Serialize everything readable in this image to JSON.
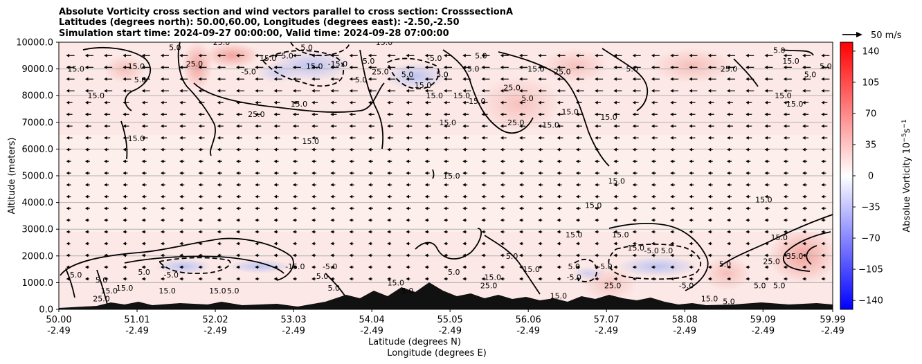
{
  "chart_data": {
    "type": "heatmap",
    "title_lines": [
      "Absolute Vorticity cross section and wind vectors parallel to cross section: CrosssectionA",
      "Latitudes (degrees north): 50.00,60.00, Longitudes (degrees east): -2.50,-2.50",
      "Simulation start time: 2024-09-27 00:00:00, Valid time: 2024-09-28 07:00:00"
    ],
    "xlabel": "Latitude (degrees N)",
    "xlabel2": "Longitude (degrees E)",
    "ylabel": "Altitude (meters)",
    "xlim": [
      50.0,
      59.99
    ],
    "ylim": [
      0,
      10000
    ],
    "x_ticks": [
      {
        "lat": "50.00",
        "lon": "-2.49",
        "value": 50.0
      },
      {
        "lat": "51.01",
        "lon": "-2.49",
        "value": 51.01
      },
      {
        "lat": "52.02",
        "lon": "-2.49",
        "value": 52.02
      },
      {
        "lat": "53.03",
        "lon": "-2.49",
        "value": 53.03
      },
      {
        "lat": "54.04",
        "lon": "-2.49",
        "value": 54.04
      },
      {
        "lat": "55.05",
        "lon": "-2.49",
        "value": 55.05
      },
      {
        "lat": "56.06",
        "lon": "-2.49",
        "value": 56.06
      },
      {
        "lat": "57.07",
        "lon": "-2.49",
        "value": 57.07
      },
      {
        "lat": "58.08",
        "lon": "-2.49",
        "value": 58.08
      },
      {
        "lat": "59.09",
        "lon": "-2.49",
        "value": 59.09
      },
      {
        "lat": "59.99",
        "lon": "-2.49",
        "value": 59.99
      }
    ],
    "y_ticks": [
      {
        "label": "0.0",
        "value": 0
      },
      {
        "label": "1000.0",
        "value": 1000
      },
      {
        "label": "2000.0",
        "value": 2000
      },
      {
        "label": "3000.0",
        "value": 3000
      },
      {
        "label": "4000.0",
        "value": 4000
      },
      {
        "label": "5000.0",
        "value": 5000
      },
      {
        "label": "6000.0",
        "value": 6000
      },
      {
        "label": "7000.0",
        "value": 7000
      },
      {
        "label": "8000.0",
        "value": 8000
      },
      {
        "label": "9000.0",
        "value": 9000
      },
      {
        "label": "10000.0",
        "value": 10000
      }
    ],
    "grid": "horizontal",
    "colorbar": {
      "label": "Absolue Vorticity 10",
      "label_exp": "−5",
      "label_unit": "s",
      "label_unit_exp": "−1",
      "range": [
        -150,
        150
      ],
      "ticks": [
        {
          "label": "140",
          "value": 140
        },
        {
          "label": "105",
          "value": 105
        },
        {
          "label": "70",
          "value": 70
        },
        {
          "label": "35",
          "value": 35
        },
        {
          "label": "0",
          "value": 0
        },
        {
          "label": "−35",
          "value": -35
        },
        {
          "label": "−70",
          "value": -70
        },
        {
          "label": "−105",
          "value": -105
        },
        {
          "label": "−140",
          "value": -140
        }
      ],
      "colors": {
        "negative": "#0000ff",
        "zero": "#ffffff",
        "positive": "#ff0000"
      }
    },
    "quiver_key": {
      "label": "50 m/s"
    },
    "contour_labels": [
      {
        "text": "15.0",
        "lat": 50.22,
        "alt": 9000
      },
      {
        "text": "15.0",
        "lat": 50.48,
        "alt": 8000
      },
      {
        "text": "15.0",
        "lat": 51.0,
        "alt": 9100
      },
      {
        "text": "5.0",
        "lat": 51.05,
        "alt": 8600
      },
      {
        "text": "15.0",
        "lat": 51.0,
        "alt": 6400
      },
      {
        "text": "5.0",
        "lat": 51.5,
        "alt": 9800
      },
      {
        "text": "25.0",
        "lat": 51.75,
        "alt": 9200
      },
      {
        "text": "25.0",
        "lat": 52.1,
        "alt": 10000
      },
      {
        "text": "15.0",
        "lat": 52.7,
        "alt": 9400
      },
      {
        "text": "5.0",
        "lat": 52.95,
        "alt": 9500
      },
      {
        "text": "-5.0",
        "lat": 52.45,
        "alt": 8900
      },
      {
        "text": "25.0",
        "lat": 52.55,
        "alt": 7300
      },
      {
        "text": "15.0",
        "lat": 53.1,
        "alt": 7700
      },
      {
        "text": "5.0",
        "lat": 53.2,
        "alt": 9800
      },
      {
        "text": "15.0",
        "lat": 53.3,
        "alt": 9100
      },
      {
        "text": "-15.0",
        "lat": 53.6,
        "alt": 9200
      },
      {
        "text": "15.0",
        "lat": 53.25,
        "alt": 6300
      },
      {
        "text": "5.0",
        "lat": 54.0,
        "alt": 9300
      },
      {
        "text": "5.0",
        "lat": 53.9,
        "alt": 8600
      },
      {
        "text": "25.0",
        "lat": 54.15,
        "alt": 8900
      },
      {
        "text": "15.0",
        "lat": 54.2,
        "alt": 10000
      },
      {
        "text": "5.0",
        "lat": 54.5,
        "alt": 8800
      },
      {
        "text": "-5.0",
        "lat": 54.85,
        "alt": 9400
      },
      {
        "text": "15.0",
        "lat": 54.7,
        "alt": 8400
      },
      {
        "text": "5.0",
        "lat": 54.95,
        "alt": 8800
      },
      {
        "text": "15.0",
        "lat": 54.85,
        "alt": 8000
      },
      {
        "text": "5.0",
        "lat": 55.35,
        "alt": 9000
      },
      {
        "text": "15.0",
        "lat": 55.2,
        "alt": 8000
      },
      {
        "text": "15.0",
        "lat": 55.4,
        "alt": 7800
      },
      {
        "text": "25.0",
        "lat": 55.85,
        "alt": 8300
      },
      {
        "text": "5.0",
        "lat": 56.05,
        "alt": 7900
      },
      {
        "text": "25.0",
        "lat": 55.9,
        "alt": 7000
      },
      {
        "text": "25.0",
        "lat": 56.5,
        "alt": 8900
      },
      {
        "text": "15.0",
        "lat": 56.35,
        "alt": 6900
      },
      {
        "text": "15.0",
        "lat": 56.6,
        "alt": 7400
      },
      {
        "text": "15.0",
        "lat": 57.1,
        "alt": 7200
      },
      {
        "text": "15.0",
        "lat": 55.02,
        "alt": 7000
      },
      {
        "text": "15.0",
        "lat": 55.07,
        "alt": 5000
      },
      {
        "text": "15.0",
        "lat": 56.16,
        "alt": 9000
      },
      {
        "text": "5.0",
        "lat": 55.45,
        "alt": 9500
      },
      {
        "text": "15.0",
        "lat": 57.2,
        "alt": 4800
      },
      {
        "text": "15.0",
        "lat": 56.9,
        "alt": 3900
      },
      {
        "text": "15.0",
        "lat": 57.25,
        "alt": 2800
      },
      {
        "text": "15.0",
        "lat": 56.65,
        "alt": 2800
      },
      {
        "text": "15.0",
        "lat": 59.1,
        "alt": 4100
      },
      {
        "text": "15.0",
        "lat": 59.3,
        "alt": 2700
      },
      {
        "text": "5.0",
        "lat": 57.4,
        "alt": 9000
      },
      {
        "text": "25.0",
        "lat": 58.65,
        "alt": 9000
      },
      {
        "text": "5.0",
        "lat": 59.3,
        "alt": 9700
      },
      {
        "text": "15.0",
        "lat": 59.35,
        "alt": 8000
      },
      {
        "text": "5.0",
        "lat": 59.7,
        "alt": 8800
      },
      {
        "text": "5.0",
        "lat": 59.9,
        "alt": 9100
      },
      {
        "text": "15.0",
        "lat": 59.45,
        "alt": 9300
      },
      {
        "text": "15.0",
        "lat": 59.5,
        "alt": 7700
      },
      {
        "text": "-15.0",
        "lat": 53.05,
        "alt": 1600
      },
      {
        "text": "-5.0",
        "lat": 53.5,
        "alt": 1600
      },
      {
        "text": "5.0",
        "lat": 53.4,
        "alt": 1250
      },
      {
        "text": "5.0",
        "lat": 53.55,
        "alt": 800
      },
      {
        "text": "15.0",
        "lat": 50.85,
        "alt": 800
      },
      {
        "text": "5.0",
        "lat": 50.22,
        "alt": 1300
      },
      {
        "text": "25.0",
        "lat": 50.55,
        "alt": 400
      },
      {
        "text": "15.0",
        "lat": 50.65,
        "alt": 700
      },
      {
        "text": "5.0",
        "lat": 50.55,
        "alt": 1100
      },
      {
        "text": "5.0",
        "lat": 51.1,
        "alt": 1400
      },
      {
        "text": "15.0",
        "lat": 51.4,
        "alt": 700
      },
      {
        "text": "-5.0",
        "lat": 51.45,
        "alt": 1300
      },
      {
        "text": "15.0",
        "lat": 52.05,
        "alt": 700
      },
      {
        "text": "5.0",
        "lat": 52.25,
        "alt": 700
      },
      {
        "text": "25.0",
        "lat": 55.55,
        "alt": 900
      },
      {
        "text": "5.0",
        "lat": 55.85,
        "alt": 2000
      },
      {
        "text": "15.0",
        "lat": 55.6,
        "alt": 1200
      },
      {
        "text": "15.0",
        "lat": 56.1,
        "alt": 1500
      },
      {
        "text": "5.0",
        "lat": 56.65,
        "alt": 1600
      },
      {
        "text": "-5.0",
        "lat": 56.65,
        "alt": 1200
      },
      {
        "text": "15.0",
        "lat": 57.45,
        "alt": 2300
      },
      {
        "text": "-5.0",
        "lat": 57.65,
        "alt": 2200
      },
      {
        "text": "5.0",
        "lat": 57.85,
        "alt": 2200
      },
      {
        "text": "5.0",
        "lat": 58.6,
        "alt": 1700
      },
      {
        "text": "25.0",
        "lat": 59.2,
        "alt": 1800
      },
      {
        "text": "35.0",
        "lat": 59.5,
        "alt": 2000
      },
      {
        "text": "5.0",
        "lat": 59.3,
        "alt": 900
      },
      {
        "text": "5.0",
        "lat": 59.05,
        "alt": 900
      },
      {
        "text": "15.0",
        "lat": 58.4,
        "alt": 400
      },
      {
        "text": "5.0",
        "lat": 58.65,
        "alt": 300
      },
      {
        "text": "25.0",
        "lat": 57.15,
        "alt": 900
      },
      {
        "text": "-5.0",
        "lat": 57.05,
        "alt": 1600
      },
      {
        "text": "-5.0",
        "lat": 58.1,
        "alt": 900
      },
      {
        "text": "15.0",
        "lat": 54.35,
        "alt": 1000
      },
      {
        "text": "5.0",
        "lat": 54.5,
        "alt": 700
      },
      {
        "text": "5.0",
        "lat": 55.1,
        "alt": 1400
      },
      {
        "text": "15.0",
        "lat": 56.45,
        "alt": 500
      }
    ]
  }
}
